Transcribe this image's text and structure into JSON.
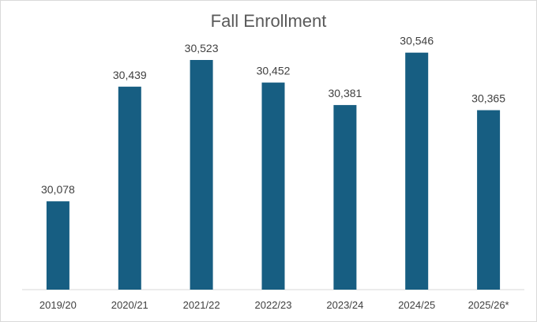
{
  "chart_data": {
    "type": "bar",
    "title": "Fall Enrollment",
    "xlabel": "",
    "ylabel": "",
    "categories": [
      "2019/20",
      "2020/21",
      "2021/22",
      "2022/23",
      "2023/24",
      "2024/25",
      "2025/26*"
    ],
    "values": [
      30078,
      30439,
      30523,
      30452,
      30381,
      30546,
      30365
    ],
    "value_labels": [
      "30,078",
      "30,439",
      "30,523",
      "30,452",
      "30,381",
      "30,546",
      "30,365"
    ],
    "bar_color": "#175e82",
    "grid": false,
    "legend": "none"
  }
}
